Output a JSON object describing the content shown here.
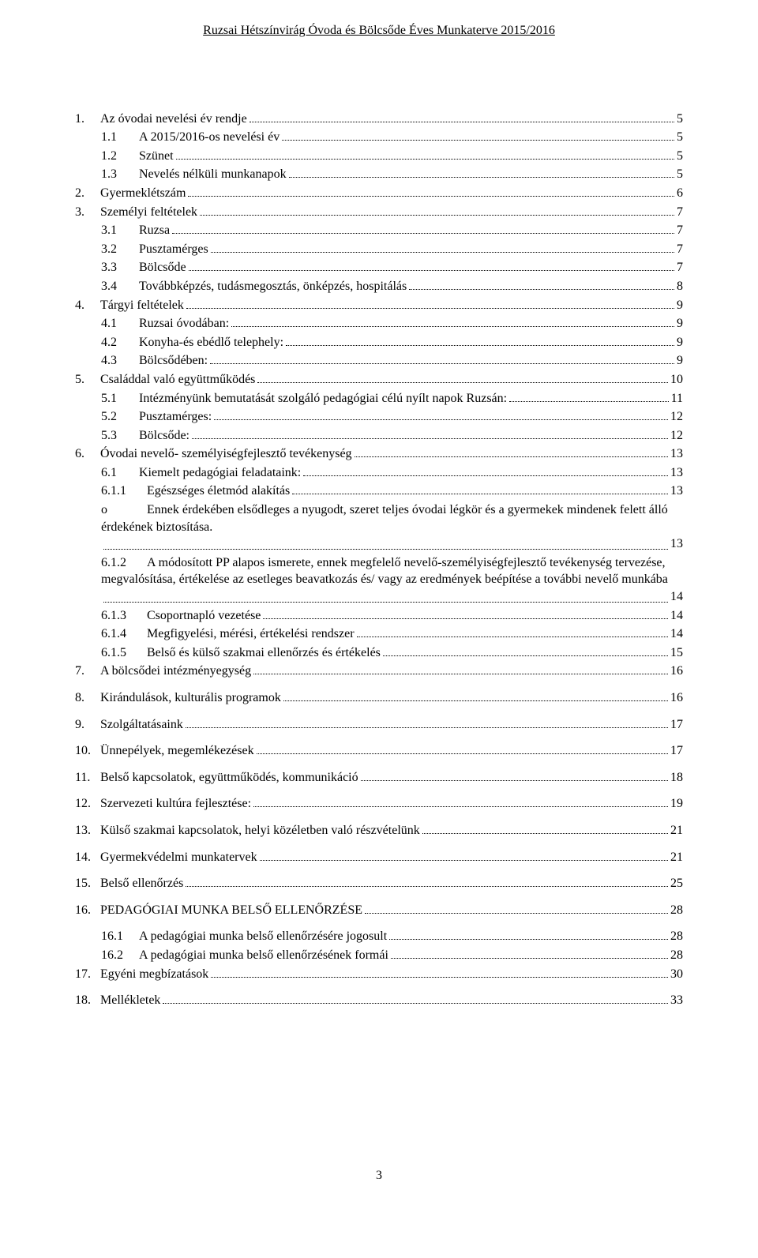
{
  "header": "Ruzsai Hétszínvirág Óvoda és Bölcsőde Éves Munkaterve 2015/2016",
  "footer_page": "3",
  "toc": [
    {
      "num": "1.",
      "title": "Az óvodai nevelési év rendje",
      "page": "5",
      "level": 1,
      "gap": false
    },
    {
      "num": "1.1",
      "title": "A 2015/2016-os nevelési év",
      "page": "5",
      "level": 2,
      "gap": false
    },
    {
      "num": "1.2",
      "title": "Szünet",
      "page": "5",
      "level": 2,
      "gap": false
    },
    {
      "num": "1.3",
      "title": "Nevelés nélküli munkanapok",
      "page": "5",
      "level": 2,
      "gap": false
    },
    {
      "num": "2.",
      "title": "Gyermeklétszám",
      "page": "6",
      "level": 1,
      "gap": false
    },
    {
      "num": "3.",
      "title": "Személyi feltételek",
      "page": "7",
      "level": 1,
      "gap": false
    },
    {
      "num": "3.1",
      "title": "Ruzsa",
      "page": "7",
      "level": 2,
      "gap": false
    },
    {
      "num": "3.2",
      "title": "Pusztamérges",
      "page": "7",
      "level": 2,
      "gap": false
    },
    {
      "num": "3.3",
      "title": "Bölcsőde",
      "page": "7",
      "level": 2,
      "gap": false
    },
    {
      "num": "3.4",
      "title": "Továbbképzés, tudásmegosztás, önképzés, hospitálás",
      "page": "8",
      "level": 2,
      "gap": false
    },
    {
      "num": "4.",
      "title": "Tárgyi feltételek",
      "page": "9",
      "level": 1,
      "gap": false
    },
    {
      "num": "4.1",
      "title": "Ruzsai óvodában:",
      "page": "9",
      "level": 2,
      "gap": false
    },
    {
      "num": "4.2",
      "title": "Konyha-és ebédlő telephely:",
      "page": "9",
      "level": 2,
      "gap": false
    },
    {
      "num": "4.3",
      "title": "Bölcsődében:",
      "page": "9",
      "level": 2,
      "gap": false
    },
    {
      "num": "5.",
      "title": "Családdal való együttműködés",
      "page": "10",
      "level": 1,
      "gap": false
    },
    {
      "num": "5.1",
      "title": "Intézményünk bemutatását szolgáló pedagógiai célú nyílt napok Ruzsán:",
      "page": "11",
      "level": 2,
      "gap": false
    },
    {
      "num": "5.2",
      "title": "Pusztamérges:",
      "page": "12",
      "level": 2,
      "gap": false
    },
    {
      "num": "5.3",
      "title": "Bölcsőde:",
      "page": "12",
      "level": 2,
      "gap": false
    },
    {
      "num": "6.",
      "title": "Óvodai nevelő- személyiségfejlesztő tevékenység",
      "page": "13",
      "level": 1,
      "gap": false
    },
    {
      "num": "6.1",
      "title": "Kiemelt pedagógiai feladataink:",
      "page": "13",
      "level": 2,
      "gap": false
    },
    {
      "num": "6.1.1",
      "title": "Egészséges életmód alakítás",
      "page": "13",
      "level": 3,
      "gap": false
    },
    {
      "num": "o",
      "title": "",
      "page": "13",
      "level": 3,
      "gap": false,
      "para": "Ennek érdekében elsődleges a nyugodt, szeret teljes óvodai légkör és a gyermekek mindenek felett álló érdekének biztosítása."
    },
    {
      "num": "6.1.2",
      "title": "",
      "page": "14",
      "level": 3,
      "gap": false,
      "para": "A módosított PP alapos ismerete, ennek megfelelő nevelő-személyiségfejlesztő tevékenység tervezése, megvalósítása, értékelése az esetleges beavatkozás és/ vagy az eredmények beépítése a további nevelő munkába"
    },
    {
      "num": "6.1.3",
      "title": "Csoportnapló vezetése",
      "page": "14",
      "level": 3,
      "gap": false
    },
    {
      "num": "6.1.4",
      "title": "Megfigyelési, mérési, értékelési rendszer",
      "page": "14",
      "level": 3,
      "gap": false
    },
    {
      "num": "6.1.5",
      "title": "Belső és külső szakmai ellenőrzés és értékelés",
      "page": "15",
      "level": 3,
      "gap": false
    },
    {
      "num": "7.",
      "title": "A bölcsődei intézményegység",
      "page": "16",
      "level": 1,
      "gap": false
    },
    {
      "num": "8.",
      "title": "Kirándulások, kulturális programok",
      "page": "16",
      "level": 1,
      "gap": true
    },
    {
      "num": "9.",
      "title": "Szolgáltatásaink",
      "page": "17",
      "level": 1,
      "gap": true
    },
    {
      "num": "10.",
      "title": "Ünnepélyek, megemlékezések",
      "page": "17",
      "level": 1,
      "gap": true
    },
    {
      "num": "11.",
      "title": "Belső kapcsolatok, együttműködés, kommunikáció",
      "page": "18",
      "level": 1,
      "gap": true
    },
    {
      "num": "12.",
      "title": "Szervezeti kultúra fejlesztése:",
      "page": "19",
      "level": 1,
      "gap": true
    },
    {
      "num": "13.",
      "title": "Külső szakmai kapcsolatok, helyi közéletben való részvételünk",
      "page": "21",
      "level": 1,
      "gap": true
    },
    {
      "num": "14.",
      "title": "Gyermekvédelmi munkatervek",
      "page": "21",
      "level": 1,
      "gap": true
    },
    {
      "num": "15.",
      "title": "Belső ellenőrzés",
      "page": "25",
      "level": 1,
      "gap": true
    },
    {
      "num": "16.",
      "title": "PEDAGÓGIAI MUNKA BELSŐ ELLENŐRZÉSE",
      "page": "28",
      "level": 1,
      "gap": true
    },
    {
      "num": "16.1",
      "title": "A pedagógiai munka belső ellenőrzésére jogosult",
      "page": "28",
      "level": 2,
      "gap": true
    },
    {
      "num": "16.2",
      "title": "A pedagógiai munka belső ellenőrzésének formái",
      "page": "28",
      "level": 2,
      "gap": false
    },
    {
      "num": "17.",
      "title": "Egyéni megbízatások",
      "page": "30",
      "level": 1,
      "gap": false
    },
    {
      "num": "18.",
      "title": "Mellékletek",
      "page": "33",
      "level": 1,
      "gap": true
    }
  ],
  "layout": {
    "num_width_l1": "32px",
    "num_width_l2": "48px",
    "num_width_l3": "58px"
  }
}
